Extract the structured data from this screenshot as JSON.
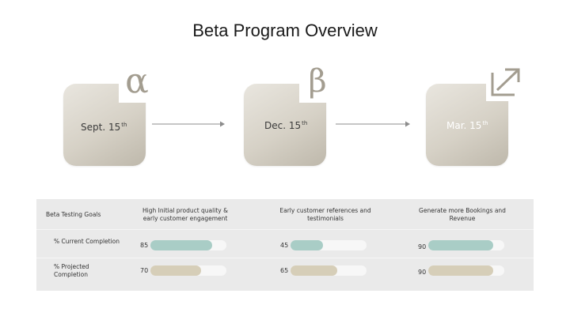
{
  "title": "Beta Program Overview",
  "milestones": [
    {
      "date": "Sept. 15",
      "sup": "th",
      "badge": "α"
    },
    {
      "date": "Dec. 15",
      "sup": "th",
      "badge": "β"
    },
    {
      "date": "Mar. 15",
      "sup": "th",
      "badge": "expand-arrow-icon"
    }
  ],
  "table": {
    "header": {
      "label": "Beta Testing Goals",
      "cols": [
        "High Initial product quality & early customer engagement",
        "Early customer references and testimonials",
        "Generate more Bookings and Revenue"
      ]
    },
    "rows": [
      {
        "label": "% Current Completion",
        "values": [
          85,
          45,
          90
        ],
        "color": "#a9cdc6"
      },
      {
        "label": "% Projected Completion",
        "values": [
          70,
          65,
          90
        ],
        "color": "#d6ceb8"
      }
    ]
  },
  "colors": {
    "tile": "#d6d1c6",
    "badge_text": "#a39d90",
    "teal": "#a9cdc6",
    "tan": "#d6ceb8",
    "table_bg": "#eaeaea"
  }
}
